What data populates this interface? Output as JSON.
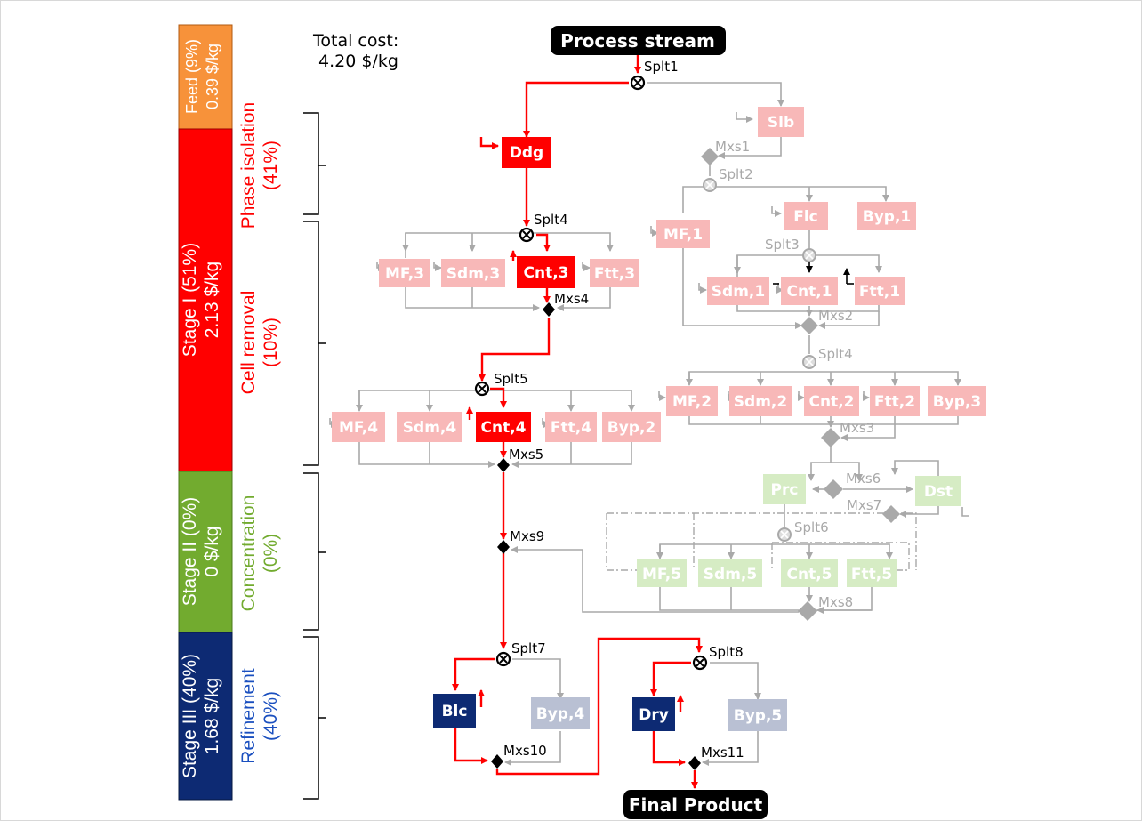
{
  "total_cost": {
    "line1": "Total cost:",
    "line2": "4.20 $/kg"
  },
  "io": {
    "input": "Process stream",
    "output": "Final Product"
  },
  "stages": [
    {
      "line1": "Feed (9%)",
      "line2": "0.39 $/kg",
      "color": "#f7923a"
    },
    {
      "line1": "Stage I (51%)",
      "line2": "2.13 $/kg",
      "color": "#ff0000"
    },
    {
      "line1": "Stage II (0%)",
      "line2": "0 $/kg",
      "color": "#72ab2f"
    },
    {
      "line1": "Stage III (40%)",
      "line2": "1.68 $/kg",
      "color": "#0d2a73"
    }
  ],
  "sections": [
    {
      "line1": "Phase isolation",
      "line2": "(41%)",
      "color": "#ff0000"
    },
    {
      "line1": "Cell removal",
      "line2": "(10%)",
      "color": "#ff0000"
    },
    {
      "line1": "Concentration",
      "line2": "(0%)",
      "color": "#72ab2f"
    },
    {
      "line1": "Refinement",
      "line2": "(40%)",
      "color": "#1a4fbf"
    }
  ],
  "colors": {
    "active_red": "#ff0000",
    "faded_red": "#f8b8b8",
    "faded_green": "#d6ecc4",
    "active_navy": "#0d2a73",
    "faded_navy": "#b9c0d3",
    "flow_gray": "#a9a9a9",
    "node_black": "#000000"
  },
  "units": {
    "slb": "Slb",
    "ddg": "Ddg",
    "flc": "Flc",
    "byp1": "Byp,1",
    "mf1": "MF,1",
    "mf3": "MF,3",
    "sdm3": "Sdm,3",
    "cnt3": "Cnt,3",
    "ftt3": "Ftt,3",
    "sdm1": "Sdm,1",
    "cnt1": "Cnt,1",
    "ftt1": "Ftt,1",
    "mf2": "MF,2",
    "sdm2": "Sdm,2",
    "cnt2": "Cnt,2",
    "ftt2": "Ftt,2",
    "byp3": "Byp,3",
    "mf4": "MF,4",
    "sdm4": "Sdm,4",
    "cnt4": "Cnt,4",
    "ftt4": "Ftt,4",
    "byp2": "Byp,2",
    "prc": "Prc",
    "dst": "Dst",
    "mf5": "MF,5",
    "sdm5": "Sdm,5",
    "cnt5": "Cnt,5",
    "ftt5": "Ftt,5",
    "blc": "Blc",
    "byp4": "Byp,4",
    "dry": "Dry",
    "byp5": "Byp,5"
  },
  "nodes": {
    "splt1": "Splt1",
    "mxs1": "Mxs1",
    "splt2": "Splt2",
    "splt3": "Splt3",
    "splt4_main": "Splt4",
    "mxs4": "Mxs4",
    "mxs2": "Mxs2",
    "splt4_alt": "Splt4",
    "splt5": "Splt5",
    "mxs3": "Mxs3",
    "mxs5": "Mxs5",
    "mxs6": "Mxs6",
    "mxs7": "Mxs7",
    "splt6": "Splt6",
    "mxs9": "Mxs9",
    "mxs8": "Mxs8",
    "splt7": "Splt7",
    "splt8": "Splt8",
    "mxs10": "Mxs10",
    "mxs11": "Mxs11"
  }
}
